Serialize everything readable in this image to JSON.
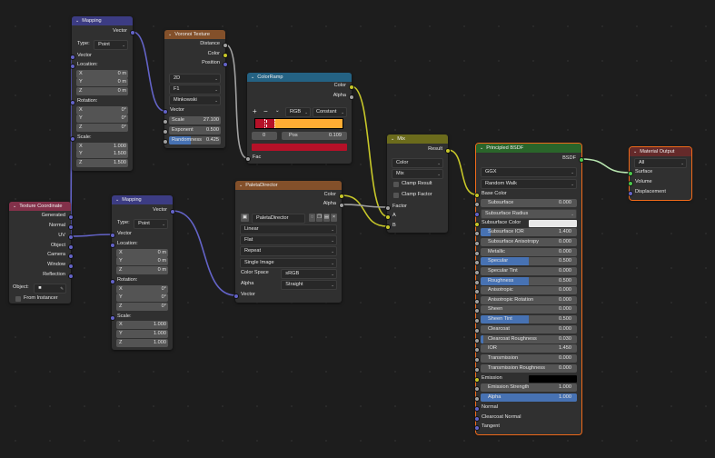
{
  "socket_colors": {
    "vector": "#6363c7",
    "color": "#c7c729",
    "float": "#a1a1a1",
    "shader": "#4dc74d"
  },
  "nodes": {
    "mapping1": {
      "title": "Mapping",
      "color": "#3c3c83",
      "rows": [
        {
          "k": "out",
          "t": "Vector",
          "s": "vector"
        },
        {
          "k": "prop",
          "t": "Type:",
          "v": "Point"
        },
        {
          "k": "in",
          "t": "Vector",
          "s": "vector"
        },
        {
          "k": "in",
          "t": "Location:",
          "s": "vector"
        },
        {
          "k": "field",
          "t": "X",
          "v": "0 m"
        },
        {
          "k": "field",
          "t": "Y",
          "v": "0 m"
        },
        {
          "k": "field",
          "t": "Z",
          "v": "0 m"
        },
        {
          "k": "in",
          "t": "Rotation:",
          "s": "vector"
        },
        {
          "k": "field",
          "t": "X",
          "v": "0°"
        },
        {
          "k": "field",
          "t": "Y",
          "v": "0°"
        },
        {
          "k": "field",
          "t": "Z",
          "v": "0°"
        },
        {
          "k": "in",
          "t": "Scale:",
          "s": "vector"
        },
        {
          "k": "field",
          "t": "X",
          "v": "1.000"
        },
        {
          "k": "field",
          "t": "Y",
          "v": "1.500"
        },
        {
          "k": "field",
          "t": "Z",
          "v": "1.500"
        }
      ]
    },
    "voronoi": {
      "title": "Voronoi Texture",
      "color": "#83502a",
      "rows": [
        {
          "k": "out",
          "t": "Distance",
          "s": "float"
        },
        {
          "k": "out",
          "t": "Color",
          "s": "color"
        },
        {
          "k": "out",
          "t": "Position",
          "s": "vector"
        },
        {
          "k": "select",
          "v": "2D"
        },
        {
          "k": "select",
          "v": "F1"
        },
        {
          "k": "select",
          "v": "Minkowski"
        },
        {
          "k": "in",
          "t": "Vector",
          "s": "vector"
        },
        {
          "k": "field",
          "t": "Scale",
          "v": "27.100",
          "s": "float"
        },
        {
          "k": "field",
          "t": "Exponent",
          "v": "0.500",
          "s": "float"
        },
        {
          "k": "field",
          "t": "Randomness",
          "v": "0.425",
          "s": "float",
          "fill": 0.425
        }
      ]
    },
    "colorramp": {
      "title": "ColorRamp",
      "color": "#246283",
      "rows": [
        {
          "k": "out",
          "t": "Color",
          "s": "color"
        },
        {
          "k": "out",
          "t": "Alpha",
          "s": "float"
        },
        {
          "k": "rampctl",
          "add": "+",
          "remove": "−",
          "mode": "RGB",
          "interp": "Constant"
        },
        {
          "k": "ramp",
          "stops": [
            {
              "pos": 0.0,
              "color": "#b51128"
            },
            {
              "pos": 0.109,
              "color": "#b51128"
            },
            {
              "pos": 0.21,
              "color": "#ffad33"
            }
          ]
        },
        {
          "k": "rampidx",
          "idx": "0",
          "t": "Pos",
          "v": "0.109"
        },
        {
          "k": "swatch",
          "color": "#b51128"
        },
        {
          "k": "in",
          "t": "Fac",
          "s": "float"
        }
      ]
    },
    "texcoord": {
      "title": "Texture Coordinate",
      "color": "#83314a",
      "rows": [
        {
          "k": "out",
          "t": "Generated",
          "s": "vector"
        },
        {
          "k": "out",
          "t": "Normal",
          "s": "vector"
        },
        {
          "k": "out",
          "t": "UV",
          "s": "vector"
        },
        {
          "k": "out",
          "t": "Object",
          "s": "vector"
        },
        {
          "k": "out",
          "t": "Camera",
          "s": "vector"
        },
        {
          "k": "out",
          "t": "Window",
          "s": "vector"
        },
        {
          "k": "out",
          "t": "Reflection",
          "s": "vector"
        },
        {
          "k": "objfield",
          "t": "Object:"
        },
        {
          "k": "check",
          "t": "From Instancer"
        }
      ]
    },
    "mapping2": {
      "title": "Mapping",
      "color": "#3c3c83",
      "rows": [
        {
          "k": "out",
          "t": "Vector",
          "s": "vector"
        },
        {
          "k": "prop",
          "t": "Type:",
          "v": "Point"
        },
        {
          "k": "in",
          "t": "Vector",
          "s": "vector"
        },
        {
          "k": "in",
          "t": "Location:",
          "s": "vector"
        },
        {
          "k": "field",
          "t": "X",
          "v": "0 m"
        },
        {
          "k": "field",
          "t": "Y",
          "v": "0 m"
        },
        {
          "k": "field",
          "t": "Z",
          "v": "0 m"
        },
        {
          "k": "in",
          "t": "Rotation:",
          "s": "vector"
        },
        {
          "k": "field",
          "t": "X",
          "v": "0°"
        },
        {
          "k": "field",
          "t": "Y",
          "v": "0°"
        },
        {
          "k": "field",
          "t": "Z",
          "v": "0°"
        },
        {
          "k": "in",
          "t": "Scale:",
          "s": "vector"
        },
        {
          "k": "field",
          "t": "X",
          "v": "1.000"
        },
        {
          "k": "field",
          "t": "Y",
          "v": "1.000"
        },
        {
          "k": "field",
          "t": "Z",
          "v": "1.000"
        }
      ]
    },
    "paleta": {
      "title": "PaletaDirector",
      "color": "#83502a",
      "rows": [
        {
          "k": "out",
          "t": "Color",
          "s": "color"
        },
        {
          "k": "out",
          "t": "Alpha",
          "s": "float"
        },
        {
          "k": "image",
          "v": "PaletaDirector"
        },
        {
          "k": "select",
          "v": "Linear"
        },
        {
          "k": "select",
          "v": "Flat"
        },
        {
          "k": "select",
          "v": "Repeat"
        },
        {
          "k": "select",
          "v": "Single Image"
        },
        {
          "k": "prop",
          "t": "Color Space",
          "v": "sRGB"
        },
        {
          "k": "prop",
          "t": "Alpha",
          "v": "Straight"
        },
        {
          "k": "in",
          "t": "Vector",
          "s": "vector"
        }
      ]
    },
    "mix": {
      "title": "Mix",
      "color": "#6b6b1c",
      "rows": [
        {
          "k": "out",
          "t": "Result",
          "s": "color"
        },
        {
          "k": "select",
          "v": "Color"
        },
        {
          "k": "select",
          "v": "Mix"
        },
        {
          "k": "check",
          "t": "Clamp Result"
        },
        {
          "k": "check",
          "t": "Clamp Factor"
        },
        {
          "k": "in",
          "t": "Factor",
          "s": "float"
        },
        {
          "k": "in",
          "t": "A",
          "s": "color"
        },
        {
          "k": "in",
          "t": "B",
          "s": "color"
        }
      ]
    },
    "bsdf": {
      "title": "Principled BSDF",
      "color": "#2a652a",
      "selected": true,
      "rows": [
        {
          "k": "out",
          "t": "BSDF",
          "s": "shader"
        },
        {
          "k": "select",
          "v": "GGX"
        },
        {
          "k": "select",
          "v": "Random Walk"
        },
        {
          "k": "in",
          "t": "Base Color",
          "s": "color"
        },
        {
          "k": "field",
          "t": "Subsurface",
          "v": "0.000",
          "s": "float"
        },
        {
          "k": "select",
          "v": "Subsurface Radius",
          "s": "vector"
        },
        {
          "k": "color",
          "t": "Subsurface Color",
          "s": "color",
          "color": "#e8e8e8"
        },
        {
          "k": "field",
          "t": "Subsurface IOR",
          "v": "1.400",
          "s": "float",
          "fill": 0.1
        },
        {
          "k": "field",
          "t": "Subsurface Anisotropy",
          "v": "0.000",
          "s": "float"
        },
        {
          "k": "field",
          "t": "Metallic",
          "v": "0.000",
          "s": "float"
        },
        {
          "k": "field",
          "t": "Specular",
          "v": "0.500",
          "s": "float",
          "fill": 0.5
        },
        {
          "k": "field",
          "t": "Specular Tint",
          "v": "0.000",
          "s": "float"
        },
        {
          "k": "field",
          "t": "Roughness",
          "v": "0.500",
          "s": "float",
          "fill": 0.5
        },
        {
          "k": "field",
          "t": "Anisotropic",
          "v": "0.000",
          "s": "float"
        },
        {
          "k": "field",
          "t": "Anisotropic Rotation",
          "v": "0.000",
          "s": "float"
        },
        {
          "k": "field",
          "t": "Sheen",
          "v": "0.000",
          "s": "float"
        },
        {
          "k": "field",
          "t": "Sheen Tint",
          "v": "0.500",
          "s": "float",
          "fill": 0.5
        },
        {
          "k": "field",
          "t": "Clearcoat",
          "v": "0.000",
          "s": "float"
        },
        {
          "k": "field",
          "t": "Clearcoat Roughness",
          "v": "0.030",
          "s": "float",
          "fill": 0.03
        },
        {
          "k": "field",
          "t": "IOR",
          "v": "1.450",
          "s": "float"
        },
        {
          "k": "field",
          "t": "Transmission",
          "v": "0.000",
          "s": "float"
        },
        {
          "k": "field",
          "t": "Transmission Roughness",
          "v": "0.000",
          "s": "float"
        },
        {
          "k": "color",
          "t": "Emission",
          "s": "color",
          "color": "#000000"
        },
        {
          "k": "field",
          "t": "Emission Strength",
          "v": "1.000",
          "s": "float"
        },
        {
          "k": "field",
          "t": "Alpha",
          "v": "1.000",
          "s": "float",
          "fill": 1.0
        },
        {
          "k": "in",
          "t": "Normal",
          "s": "vector"
        },
        {
          "k": "in",
          "t": "Clearcoat Normal",
          "s": "vector"
        },
        {
          "k": "in",
          "t": "Tangent",
          "s": "vector"
        }
      ]
    },
    "matout": {
      "title": "Material Output",
      "color": "#652a2a",
      "selected": true,
      "rows": [
        {
          "k": "select",
          "v": "All"
        },
        {
          "k": "in",
          "t": "Surface",
          "s": "shader"
        },
        {
          "k": "in",
          "t": "Volume",
          "s": "shader"
        },
        {
          "k": "in",
          "t": "Displacement",
          "s": "vector"
        }
      ]
    }
  }
}
